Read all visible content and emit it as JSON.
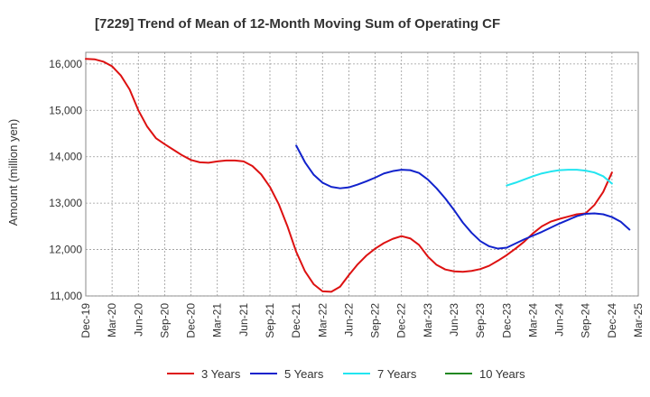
{
  "chart_data": {
    "type": "line",
    "title": "[7229]  Trend of Mean of 12-Month Moving Sum of Operating CF",
    "xlabel": "",
    "ylabel": "Amount (million yen)",
    "ylim": [
      11000,
      16250
    ],
    "yticks": [
      11000,
      12000,
      13000,
      14000,
      15000,
      16000
    ],
    "ytick_labels": [
      "11,000",
      "12,000",
      "13,000",
      "14,000",
      "15,000",
      "16,000"
    ],
    "xticks": [
      "Dec-19",
      "Mar-20",
      "Jun-20",
      "Sep-20",
      "Dec-20",
      "Mar-21",
      "Jun-21",
      "Sep-21",
      "Dec-21",
      "Mar-22",
      "Jun-22",
      "Sep-22",
      "Dec-22",
      "Mar-23",
      "Jun-23",
      "Sep-23",
      "Dec-23",
      "Mar-24",
      "Jun-24",
      "Sep-24",
      "Dec-24",
      "Mar-25"
    ],
    "grid": true,
    "legend_position": "bottom",
    "series": [
      {
        "name": "3 Years",
        "color": "#dd1111",
        "start": "Dec-19",
        "values": [
          16110,
          16100,
          16050,
          15950,
          15750,
          15450,
          15000,
          14650,
          14400,
          14270,
          14150,
          14030,
          13930,
          13880,
          13870,
          13900,
          13920,
          13920,
          13900,
          13800,
          13620,
          13350,
          12980,
          12500,
          11950,
          11530,
          11250,
          11100,
          11090,
          11200,
          11450,
          11680,
          11870,
          12020,
          12140,
          12230,
          12290,
          12240,
          12100,
          11850,
          11670,
          11570,
          11530,
          11520,
          11540,
          11580,
          11650,
          11760,
          11880,
          12020,
          12170,
          12350,
          12500,
          12600,
          12660,
          12710,
          12760,
          12780,
          12960,
          13240,
          13660
        ]
      },
      {
        "name": "5 Years",
        "color": "#1122cc",
        "start": "Dec-21",
        "values": [
          14240,
          13880,
          13610,
          13440,
          13350,
          13320,
          13340,
          13400,
          13470,
          13550,
          13640,
          13690,
          13720,
          13710,
          13650,
          13510,
          13320,
          13100,
          12850,
          12580,
          12360,
          12180,
          12070,
          12020,
          12040,
          12130,
          12220,
          12300,
          12380,
          12470,
          12560,
          12640,
          12720,
          12770,
          12780,
          12760,
          12700,
          12600,
          12430
        ]
      },
      {
        "name": "7 Years",
        "color": "#22e5f0",
        "start": "Dec-23",
        "values": [
          13380,
          13440,
          13510,
          13580,
          13640,
          13680,
          13710,
          13720,
          13720,
          13700,
          13660,
          13580,
          13420
        ]
      },
      {
        "name": "10 Years",
        "color": "#228822",
        "start": "Dec-19",
        "values": []
      }
    ]
  }
}
